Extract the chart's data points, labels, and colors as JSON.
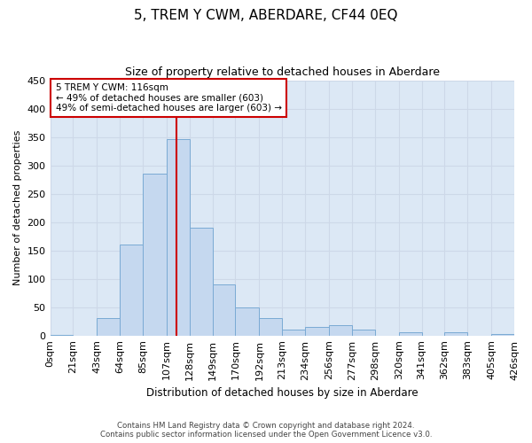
{
  "title": "5, TREM Y CWM, ABERDARE, CF44 0EQ",
  "subtitle": "Size of property relative to detached houses in Aberdare",
  "xlabel": "Distribution of detached houses by size in Aberdare",
  "ylabel": "Number of detached properties",
  "bar_edges": [
    0,
    21,
    43,
    64,
    85,
    107,
    128,
    149,
    170,
    192,
    213,
    234,
    256,
    277,
    298,
    320,
    341,
    362,
    383,
    405,
    426
  ],
  "bar_heights": [
    1,
    0,
    30,
    160,
    285,
    347,
    190,
    90,
    50,
    30,
    10,
    15,
    18,
    10,
    0,
    5,
    0,
    5,
    0,
    2
  ],
  "tick_labels": [
    "0sqm",
    "21sqm",
    "43sqm",
    "64sqm",
    "85sqm",
    "107sqm",
    "128sqm",
    "149sqm",
    "170sqm",
    "192sqm",
    "213sqm",
    "234sqm",
    "256sqm",
    "277sqm",
    "298sqm",
    "320sqm",
    "341sqm",
    "362sqm",
    "383sqm",
    "405sqm",
    "426sqm"
  ],
  "bar_color": "#c5d8ef",
  "bar_edge_color": "#7aaad4",
  "vline_x": 116,
  "vline_color": "#cc0000",
  "annotation_box_edge_color": "#cc0000",
  "annotation_lines": [
    "5 TREM Y CWM: 116sqm",
    "← 49% of detached houses are smaller (603)",
    "49% of semi-detached houses are larger (603) →"
  ],
  "ylim": [
    0,
    450
  ],
  "xlim": [
    0,
    426
  ],
  "yticks": [
    0,
    50,
    100,
    150,
    200,
    250,
    300,
    350,
    400,
    450
  ],
  "footer_lines": [
    "Contains HM Land Registry data © Crown copyright and database right 2024.",
    "Contains public sector information licensed under the Open Government Licence v3.0."
  ],
  "grid_color": "#cdd8e8",
  "background_color": "#dce8f5"
}
